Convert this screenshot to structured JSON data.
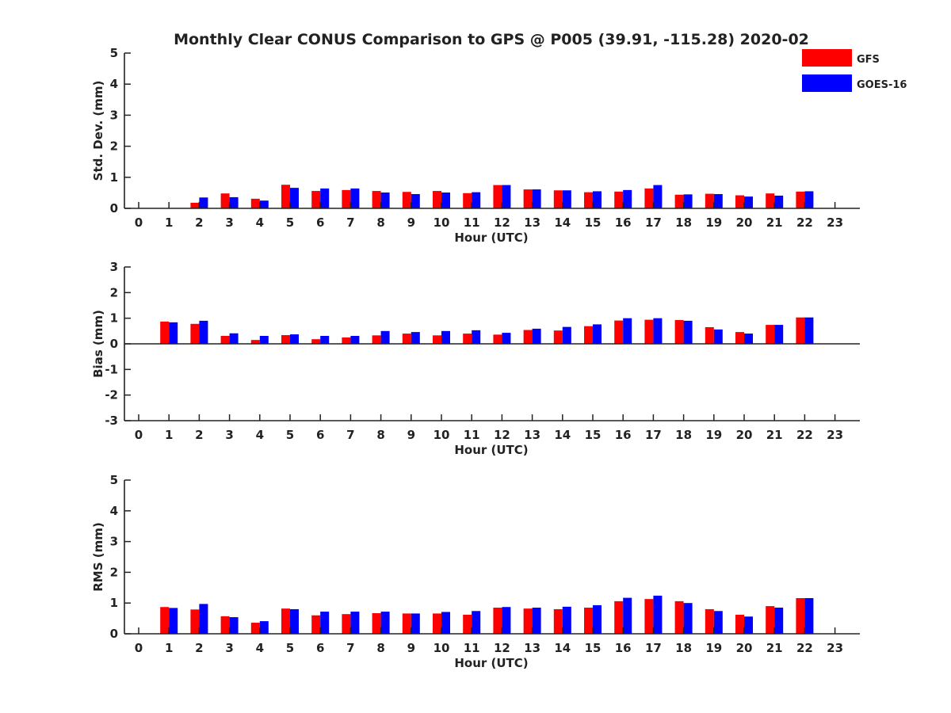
{
  "chart_data": {
    "type": "bar",
    "title": "Monthly Clear CONUS Comparison to GPS @ P005 (39.91, -115.28) 2020-02",
    "legend": {
      "placement": "top-right",
      "entries": [
        {
          "name": "GFS",
          "color": "#ff0000"
        },
        {
          "name": "GOES-16",
          "color": "#0000ff"
        }
      ]
    },
    "categories": [
      "0",
      "1",
      "2",
      "3",
      "4",
      "5",
      "6",
      "7",
      "8",
      "9",
      "10",
      "11",
      "12",
      "13",
      "14",
      "15",
      "16",
      "17",
      "18",
      "19",
      "20",
      "21",
      "22",
      "23"
    ],
    "panels": [
      {
        "ylabel": "Std. Dev. (mm)",
        "xlabel": "Hour (UTC)",
        "ylim": [
          0,
          5
        ],
        "yticks": [
          "0",
          "1",
          "2",
          "3",
          "4",
          "5"
        ],
        "series": [
          {
            "name": "GFS",
            "color": "#ff0000",
            "values": [
              null,
              null,
              0.18,
              0.48,
              0.31,
              0.76,
              0.56,
              0.59,
              0.56,
              0.53,
              0.56,
              0.49,
              0.75,
              0.61,
              0.58,
              0.52,
              0.54,
              0.64,
              0.44,
              0.47,
              0.42,
              0.48,
              0.54,
              null
            ]
          },
          {
            "name": "GOES-16",
            "color": "#0000ff",
            "values": [
              null,
              null,
              0.35,
              0.36,
              0.25,
              0.66,
              0.64,
              0.64,
              0.51,
              0.46,
              0.51,
              0.52,
              0.75,
              0.61,
              0.58,
              0.55,
              0.59,
              0.75,
              0.45,
              0.46,
              0.38,
              0.41,
              0.55,
              null
            ]
          }
        ]
      },
      {
        "ylabel": "Bias (mm)",
        "xlabel": "Hour (UTC)",
        "ylim": [
          -3,
          3
        ],
        "yticks": [
          "-3",
          "-2",
          "-1",
          "0",
          "1",
          "2",
          "3"
        ],
        "series": [
          {
            "name": "GFS",
            "color": "#ff0000",
            "values": [
              null,
              0.87,
              0.78,
              0.31,
              0.15,
              0.34,
              0.18,
              0.25,
              0.33,
              0.4,
              0.33,
              0.4,
              0.36,
              0.54,
              0.52,
              0.69,
              0.91,
              0.94,
              0.93,
              0.65,
              0.46,
              0.74,
              1.03,
              null
            ]
          },
          {
            "name": "GOES-16",
            "color": "#0000ff",
            "values": [
              null,
              0.84,
              0.9,
              0.41,
              0.31,
              0.37,
              0.31,
              0.31,
              0.5,
              0.46,
              0.5,
              0.53,
              0.43,
              0.59,
              0.66,
              0.76,
              1.0,
              1.0,
              0.9,
              0.56,
              0.4,
              0.74,
              1.03,
              null
            ]
          }
        ]
      },
      {
        "ylabel": "RMS (mm)",
        "xlabel": "Hour (UTC)",
        "ylim": [
          0,
          5
        ],
        "yticks": [
          "0",
          "1",
          "2",
          "3",
          "4",
          "5"
        ],
        "series": [
          {
            "name": "GFS",
            "color": "#ff0000",
            "values": [
              null,
              0.87,
              0.79,
              0.57,
              0.36,
              0.82,
              0.6,
              0.64,
              0.67,
              0.66,
              0.66,
              0.62,
              0.85,
              0.82,
              0.8,
              0.85,
              1.06,
              1.13,
              1.06,
              0.8,
              0.62,
              0.9,
              1.16,
              null
            ]
          },
          {
            "name": "GOES-16",
            "color": "#0000ff",
            "values": [
              null,
              0.84,
              0.97,
              0.54,
              0.41,
              0.8,
              0.72,
              0.72,
              0.72,
              0.66,
              0.71,
              0.74,
              0.87,
              0.85,
              0.88,
              0.93,
              1.17,
              1.24,
              1.0,
              0.74,
              0.56,
              0.85,
              1.16,
              null
            ]
          }
        ]
      }
    ]
  }
}
